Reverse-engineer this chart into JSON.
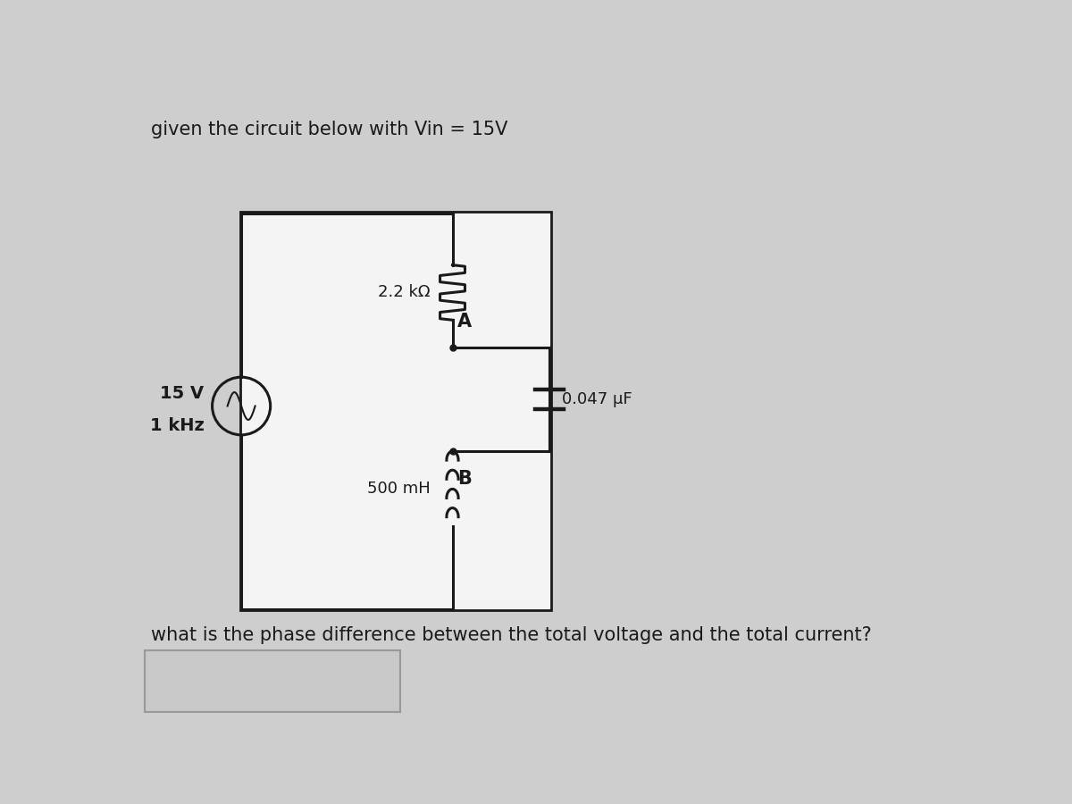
{
  "title": "given the circuit below with Vin = 15V",
  "question": "what is the phase difference between the total voltage and the total current?",
  "bg_color": "#cecece",
  "white_box_color": "#f0f0f0",
  "source_label_line1": "15 V",
  "source_label_line2": "1 kHz",
  "resistor_label": "2.2 kΩ",
  "inductor_label": "500 mH",
  "capacitor_label": "0.047 μF",
  "node_A": "A",
  "node_B": "B",
  "answer_box_color": "#c8c8c8",
  "line_color": "#1a1a1a",
  "text_color": "#1a1a1a",
  "font_size_title": 15,
  "font_size_labels": 13,
  "font_size_question": 15,
  "font_size_nodes": 14
}
